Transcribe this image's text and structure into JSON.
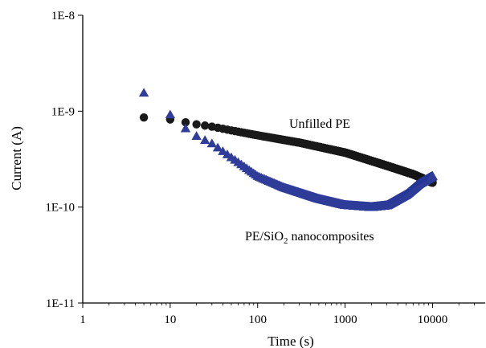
{
  "chart_data": {
    "type": "scatter",
    "xlabel": "Time (s)",
    "ylabel": "Current (A)",
    "x_scale": "log",
    "y_scale": "log",
    "xlim": [
      1,
      40000
    ],
    "ylim": [
      1e-11,
      1e-08
    ],
    "x_ticks": [
      {
        "value": 1,
        "label": "1"
      },
      {
        "value": 10,
        "label": "10"
      },
      {
        "value": 100,
        "label": "100"
      },
      {
        "value": 1000,
        "label": "1000"
      },
      {
        "value": 10000,
        "label": "10000"
      }
    ],
    "y_ticks": [
      {
        "value": 1e-11,
        "label": "1E-11"
      },
      {
        "value": 1e-10,
        "label": "1E-10"
      },
      {
        "value": 1e-09,
        "label": "1E-9"
      },
      {
        "value": 1e-08,
        "label": "1E-8"
      }
    ],
    "grid": false,
    "series": [
      {
        "name": "Unfilled PE",
        "marker": "circle",
        "color": "#1a1a1a",
        "x_start": 5,
        "x_step": 5,
        "x_end": 10000,
        "y_control_points": [
          [
            5,
            8.6e-10
          ],
          [
            10,
            8.2e-10
          ],
          [
            20,
            7.3e-10
          ],
          [
            30,
            6.9e-10
          ],
          [
            50,
            6.3e-10
          ],
          [
            100,
            5.6e-10
          ],
          [
            300,
            4.7e-10
          ],
          [
            1000,
            3.7e-10
          ],
          [
            3000,
            2.7e-10
          ],
          [
            6000,
            2.2e-10
          ],
          [
            10000,
            1.8e-10
          ]
        ]
      },
      {
        "name": "PE/SiO2 nanocomposites",
        "marker": "triangle",
        "color": "#2f3d99",
        "x_start": 5,
        "x_step": 5,
        "x_end": 10000,
        "y_control_points": [
          [
            5,
            1.55e-09
          ],
          [
            10,
            9.2e-10
          ],
          [
            15,
            6.6e-10
          ],
          [
            20,
            5.5e-10
          ],
          [
            30,
            4.6e-10
          ],
          [
            50,
            3.3e-10
          ],
          [
            100,
            2.1e-10
          ],
          [
            200,
            1.6e-10
          ],
          [
            500,
            1.22e-10
          ],
          [
            1000,
            1.05e-10
          ],
          [
            2000,
            1e-10
          ],
          [
            3000,
            1.04e-10
          ],
          [
            5000,
            1.35e-10
          ],
          [
            7000,
            1.75e-10
          ],
          [
            10000,
            2.1e-10
          ]
        ]
      }
    ],
    "annotations": {
      "unfilled": "Unfilled PE",
      "composite_main": "PE/SiO",
      "composite_sub": "2",
      "composite_tail": " nanocomposites"
    }
  }
}
